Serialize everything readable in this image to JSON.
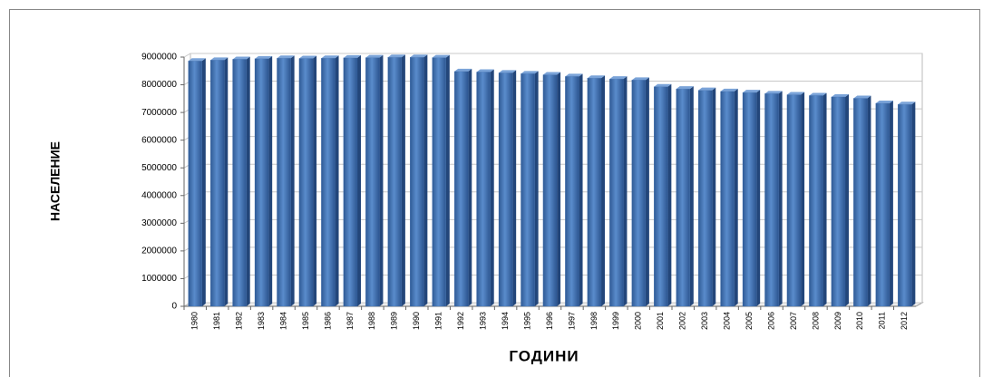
{
  "chart_data": {
    "type": "bar",
    "x_label": "ГОДИНИ",
    "y_label": "НАСЕЛЕНИЕ",
    "categories": [
      "1980",
      "1981",
      "1982",
      "1983",
      "1984",
      "1985",
      "1986",
      "1987",
      "1988",
      "1989",
      "1990",
      "1991",
      "1992",
      "1993",
      "1994",
      "1995",
      "1996",
      "1997",
      "1998",
      "1999",
      "2000",
      "2001",
      "2002",
      "2003",
      "2004",
      "2005",
      "2006",
      "2007",
      "2008",
      "2009",
      "2010",
      "2011",
      "2012"
    ],
    "values": [
      8860000,
      8890000,
      8920000,
      8940000,
      8960000,
      8950000,
      8960000,
      8970000,
      8980000,
      8990000,
      8990000,
      8980000,
      8480000,
      8460000,
      8430000,
      8400000,
      8360000,
      8300000,
      8240000,
      8210000,
      8170000,
      7930000,
      7850000,
      7800000,
      7760000,
      7720000,
      7680000,
      7640000,
      7610000,
      7560000,
      7510000,
      7330000,
      7290000
    ],
    "color": "#3f6fb0",
    "ylim": [
      0,
      9000000
    ],
    "yticks": [
      0,
      1000000,
      2000000,
      3000000,
      4000000,
      5000000,
      6000000,
      7000000,
      8000000,
      9000000
    ],
    "grid": true
  }
}
